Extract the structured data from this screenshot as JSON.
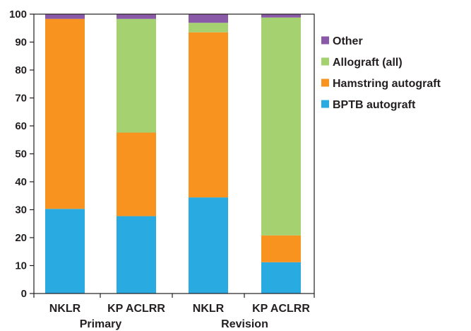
{
  "chart_data": {
    "type": "bar",
    "stacked": true,
    "categories": [
      "NKLR",
      "KP ACLRR",
      "NKLR",
      "KP ACLRR"
    ],
    "groups": [
      {
        "label": "Primary",
        "categories": [
          0,
          1
        ]
      },
      {
        "label": "Revision",
        "categories": [
          2,
          3
        ]
      }
    ],
    "series": [
      {
        "name": "BPTB autograft",
        "color": "#29abe2",
        "values": [
          30.3,
          27.7,
          34.4,
          11.2
        ]
      },
      {
        "name": "Hamstring autograft",
        "color": "#f7931e",
        "values": [
          68.0,
          29.9,
          59.1,
          9.6
        ]
      },
      {
        "name": "Allograft (all)",
        "color": "#a6d170",
        "values": [
          0.0,
          40.7,
          3.4,
          78.0
        ]
      },
      {
        "name": "Other",
        "color": "#8a5aa8",
        "values": [
          1.7,
          1.7,
          3.1,
          1.2
        ]
      }
    ],
    "legend_order": [
      "Other",
      "Allograft (all)",
      "Hamstring autograft",
      "BPTB autograft"
    ],
    "legend_position": "right",
    "ylim": [
      0,
      100
    ],
    "yticks": [
      0,
      10,
      20,
      30,
      40,
      50,
      60,
      70,
      80,
      90,
      100
    ],
    "title": "",
    "xlabel": "",
    "ylabel": "",
    "grid": false
  }
}
